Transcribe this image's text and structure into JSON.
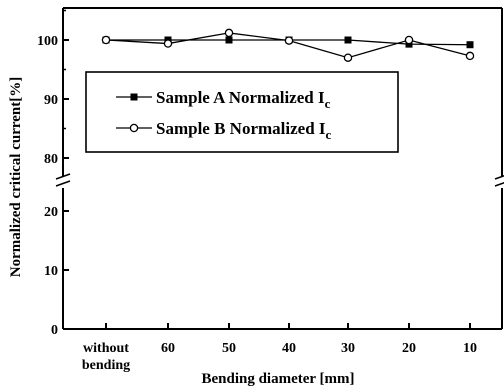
{
  "chart_data": {
    "type": "line",
    "title": "",
    "xlabel": "Bending diameter [mm]",
    "ylabel": "Normalized critical current[%]",
    "categories": [
      "without bending",
      "60",
      "50",
      "40",
      "30",
      "20",
      "10"
    ],
    "x_tick_labels": [
      [
        "without",
        "bending"
      ],
      [
        "60"
      ],
      [
        "50"
      ],
      [
        "40"
      ],
      [
        "30"
      ],
      [
        "20"
      ],
      [
        "10"
      ]
    ],
    "y_axis": {
      "broken": true,
      "lower_range": [
        0,
        30
      ],
      "upper_range": [
        77,
        105
      ],
      "lower_ticks": [
        "0",
        "10",
        "20"
      ],
      "upper_ticks": [
        "80",
        "90",
        "100"
      ]
    },
    "series": [
      {
        "name": "Sample A Normalized I",
        "name_subscript": "c",
        "marker": "filled-square",
        "color": "#000000",
        "values": [
          100,
          100,
          100,
          100,
          100,
          99.3,
          99.2
        ]
      },
      {
        "name": "Sample B Normalized I",
        "name_subscript": "c",
        "marker": "open-circle",
        "color": "#000000",
        "values": [
          100,
          99.4,
          101.2,
          99.9,
          97,
          100,
          97.3
        ]
      }
    ],
    "grid": false,
    "legend_position": "upper-left inside plot"
  }
}
